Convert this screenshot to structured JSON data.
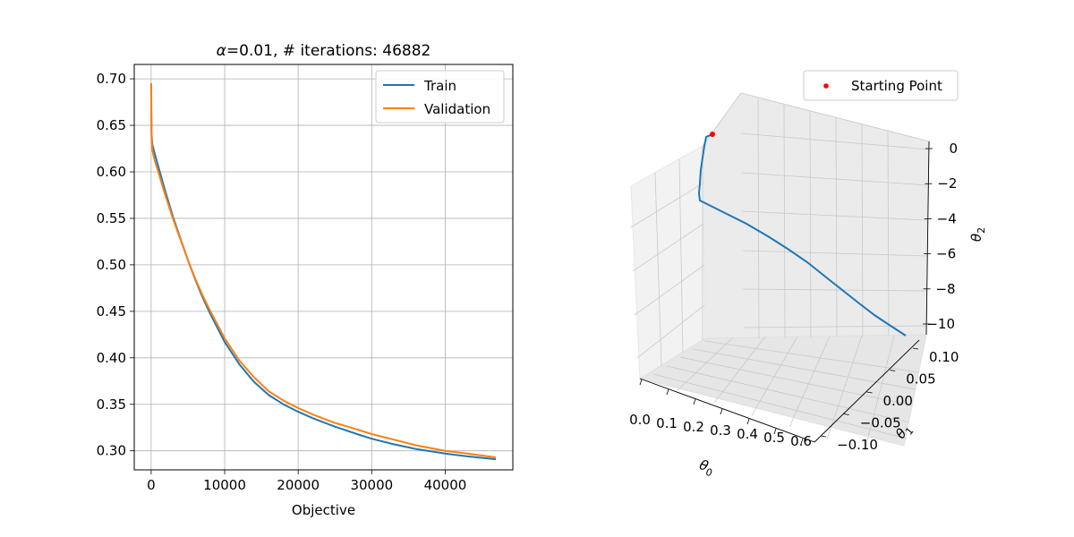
{
  "chart_data": [
    {
      "type": "line",
      "title": "α=0.01, # iterations: 46882",
      "xlabel": "Objective",
      "ylabel": "",
      "xlim": [
        -2300,
        49200
      ],
      "ylim": [
        0.2795,
        0.7155
      ],
      "xticks": [
        0,
        10000,
        20000,
        30000,
        40000
      ],
      "xtick_labels": [
        "0",
        "10000",
        "20000",
        "30000",
        "40000"
      ],
      "yticks": [
        0.3,
        0.35,
        0.4,
        0.45,
        0.5,
        0.55,
        0.6,
        0.65,
        0.7
      ],
      "ytick_labels": [
        "0.30",
        "0.35",
        "0.40",
        "0.45",
        "0.50",
        "0.55",
        "0.60",
        "0.65",
        "0.70"
      ],
      "grid": true,
      "legend_position": "top-right",
      "series": [
        {
          "name": "Train",
          "color": "#1f77b4",
          "x": [
            0,
            50,
            150,
            300,
            500,
            1000,
            1500,
            2000,
            3000,
            4000,
            5000,
            6000,
            7000,
            8000,
            10000,
            12000,
            14000,
            16000,
            18000,
            20000,
            22000,
            25000,
            28000,
            30000,
            33000,
            36000,
            40000,
            43000,
            46882
          ],
          "y": [
            0.695,
            0.64,
            0.63,
            0.625,
            0.619,
            0.605,
            0.591,
            0.577,
            0.551,
            0.528,
            0.505,
            0.484,
            0.465,
            0.448,
            0.417,
            0.393,
            0.374,
            0.36,
            0.35,
            0.342,
            0.335,
            0.326,
            0.318,
            0.313,
            0.307,
            0.302,
            0.297,
            0.294,
            0.291
          ]
        },
        {
          "name": "Validation",
          "color": "#ff7f0e",
          "x": [
            0,
            50,
            150,
            300,
            500,
            1000,
            1500,
            2000,
            3000,
            4000,
            5000,
            6000,
            7000,
            8000,
            10000,
            12000,
            14000,
            16000,
            18000,
            20000,
            22000,
            25000,
            28000,
            30000,
            33000,
            36000,
            40000,
            43000,
            46882
          ],
          "y": [
            0.695,
            0.635,
            0.624,
            0.618,
            0.612,
            0.599,
            0.586,
            0.573,
            0.549,
            0.527,
            0.505,
            0.485,
            0.467,
            0.451,
            0.421,
            0.397,
            0.379,
            0.364,
            0.354,
            0.346,
            0.339,
            0.33,
            0.323,
            0.318,
            0.312,
            0.306,
            0.3,
            0.297,
            0.293
          ]
        }
      ]
    },
    {
      "type": "line3d",
      "title": "",
      "xlabel": "θ0",
      "ylabel": "θ1",
      "zlabel": "θ2",
      "xlim": [
        -0.03,
        0.62
      ],
      "ylim": [
        -0.12,
        0.13
      ],
      "zlim": [
        -10.9,
        0.5
      ],
      "xticks": [
        0.0,
        0.1,
        0.2,
        0.3,
        0.4,
        0.5,
        0.6
      ],
      "xtick_labels": [
        "0.0",
        "0.1",
        "0.2",
        "0.3",
        "0.4",
        "0.5",
        "0.6"
      ],
      "yticks": [
        -0.1,
        -0.05,
        0.0,
        0.05,
        0.1
      ],
      "ytick_labels": [
        "−0.10",
        "−0.05",
        "0.00",
        "0.05",
        "0.10"
      ],
      "zticks": [
        0,
        -2,
        -4,
        -6,
        -8,
        -10
      ],
      "ztick_labels": [
        "0",
        "−2",
        "−4",
        "−6",
        "−8",
        "−10"
      ],
      "grid": true,
      "legend_position": "top-right",
      "starting_point": {
        "name": "Starting Point",
        "x": 0.0,
        "y": 0.0,
        "z": 0.0,
        "color": "#ff0000"
      },
      "series": [
        {
          "name": "",
          "color": "#1f77b4",
          "points": [
            [
              0.0,
              0.0,
              0.0
            ],
            [
              0.0,
              -0.002,
              -0.1
            ],
            [
              -0.002,
              -0.006,
              -0.5
            ],
            [
              -0.003,
              -0.01,
              -1.1
            ],
            [
              -0.003,
              -0.013,
              -1.6
            ],
            [
              -0.002,
              -0.015,
              -2.1
            ],
            [
              -0.001,
              -0.016,
              -2.6
            ],
            [
              0.0,
              -0.016,
              -3.1
            ],
            [
              0.02,
              -0.002,
              -4.0
            ],
            [
              0.045,
              0.012,
              -4.9
            ],
            [
              0.075,
              0.028,
              -5.8
            ],
            [
              0.11,
              0.042,
              -6.6
            ],
            [
              0.15,
              0.056,
              -7.4
            ],
            [
              0.19,
              0.068,
              -8.1
            ],
            [
              0.235,
              0.08,
              -8.7
            ],
            [
              0.28,
              0.09,
              -9.3
            ],
            [
              0.33,
              0.098,
              -9.8
            ],
            [
              0.38,
              0.104,
              -10.3
            ],
            [
              0.42,
              0.108,
              -10.7
            ]
          ]
        }
      ]
    }
  ]
}
